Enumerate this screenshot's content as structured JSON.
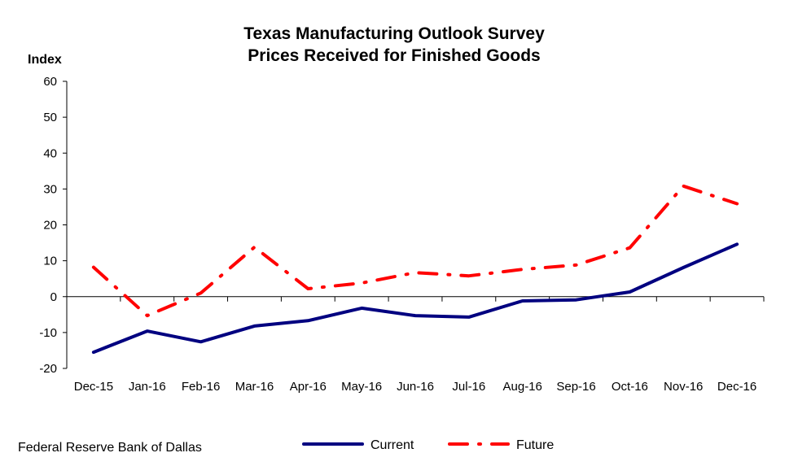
{
  "chart_data": {
    "type": "line",
    "title": "Texas Manufacturing Outlook  Survey",
    "subtitle": "Prices Received for Finished Goods",
    "ylabel": "Index",
    "xlabel": "",
    "categories": [
      "Dec-15",
      "Jan-16",
      "Feb-16",
      "Mar-16",
      "Apr-16",
      "May-16",
      "Jun-16",
      "Jul-16",
      "Aug-16",
      "Sep-16",
      "Oct-16",
      "Nov-16",
      "Dec-16"
    ],
    "ylim": [
      -20,
      60
    ],
    "yticks": [
      -20,
      -10,
      0,
      10,
      20,
      30,
      40,
      50,
      60
    ],
    "grid": false,
    "legend_position": "bottom",
    "series": [
      {
        "name": "Current",
        "values": [
          -15.5,
          -9.6,
          -12.6,
          -8.2,
          -6.7,
          -3.2,
          -5.3,
          -5.7,
          -1.2,
          -0.9,
          1.3,
          8.1,
          14.6
        ],
        "color": "#000080",
        "style": "solid"
      },
      {
        "name": "Future",
        "values": [
          8.2,
          -5.3,
          1.0,
          13.8,
          2.2,
          3.8,
          6.7,
          5.8,
          7.6,
          8.8,
          13.6,
          30.8,
          25.9
        ],
        "color": "#ff0000",
        "style": "dashdot"
      }
    ]
  },
  "source": "Federal Reserve Bank of Dallas"
}
